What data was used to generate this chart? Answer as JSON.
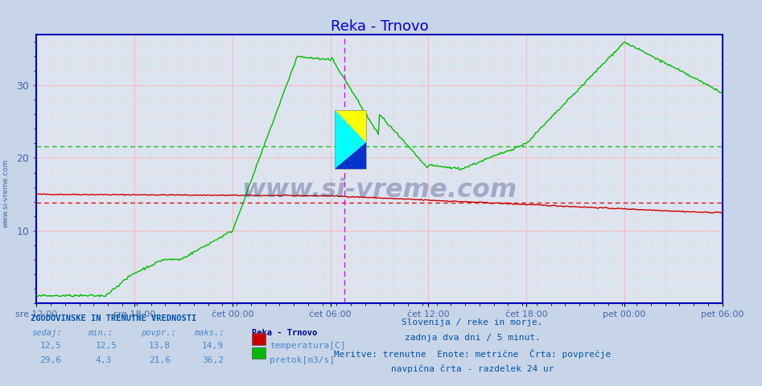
{
  "title": "Reka - Trnovo",
  "title_color": "#0000cc",
  "bg_color": "#c8d4e8",
  "plot_bg_color": "#dce4f0",
  "grid_color_major": "#ffaaaa",
  "grid_color_minor": "#ffcccc",
  "ylabel_color": "#4466aa",
  "xlabel_color": "#4466aa",
  "ymin": 0,
  "ymax": 37,
  "yticks": [
    10,
    20,
    30
  ],
  "xtick_labels": [
    "sre 12:00",
    "sre 18:00",
    "čet 00:00",
    "čet 06:00",
    "čet 12:00",
    "čet 18:00",
    "pet 00:00",
    "pet 06:00"
  ],
  "n_points": 577,
  "temp_color": "#cc0000",
  "flow_color": "#00bb00",
  "temp_avg": 13.8,
  "flow_avg": 21.6,
  "temp_min": 12.5,
  "temp_max": 14.9,
  "temp_current": 12.5,
  "flow_min": 4.3,
  "flow_max": 36.2,
  "flow_current": 29.6,
  "footnote_lines": [
    "Slovenija / reke in morje.",
    "zadnja dva dni / 5 minut.",
    "Meritve: trenutne  Enote: metrične  Črta: povprečje",
    "navpična črta - razdelek 24 ur"
  ],
  "footnote_color": "#0055aa",
  "sidebar_text": "www.si-vreme.com",
  "vline_color": "#ee00ee",
  "axis_color": "#0000bb",
  "watermark_color": "#1a2a6a",
  "watermark_alpha": 0.3,
  "axis_arrow_color": "#cc0000"
}
